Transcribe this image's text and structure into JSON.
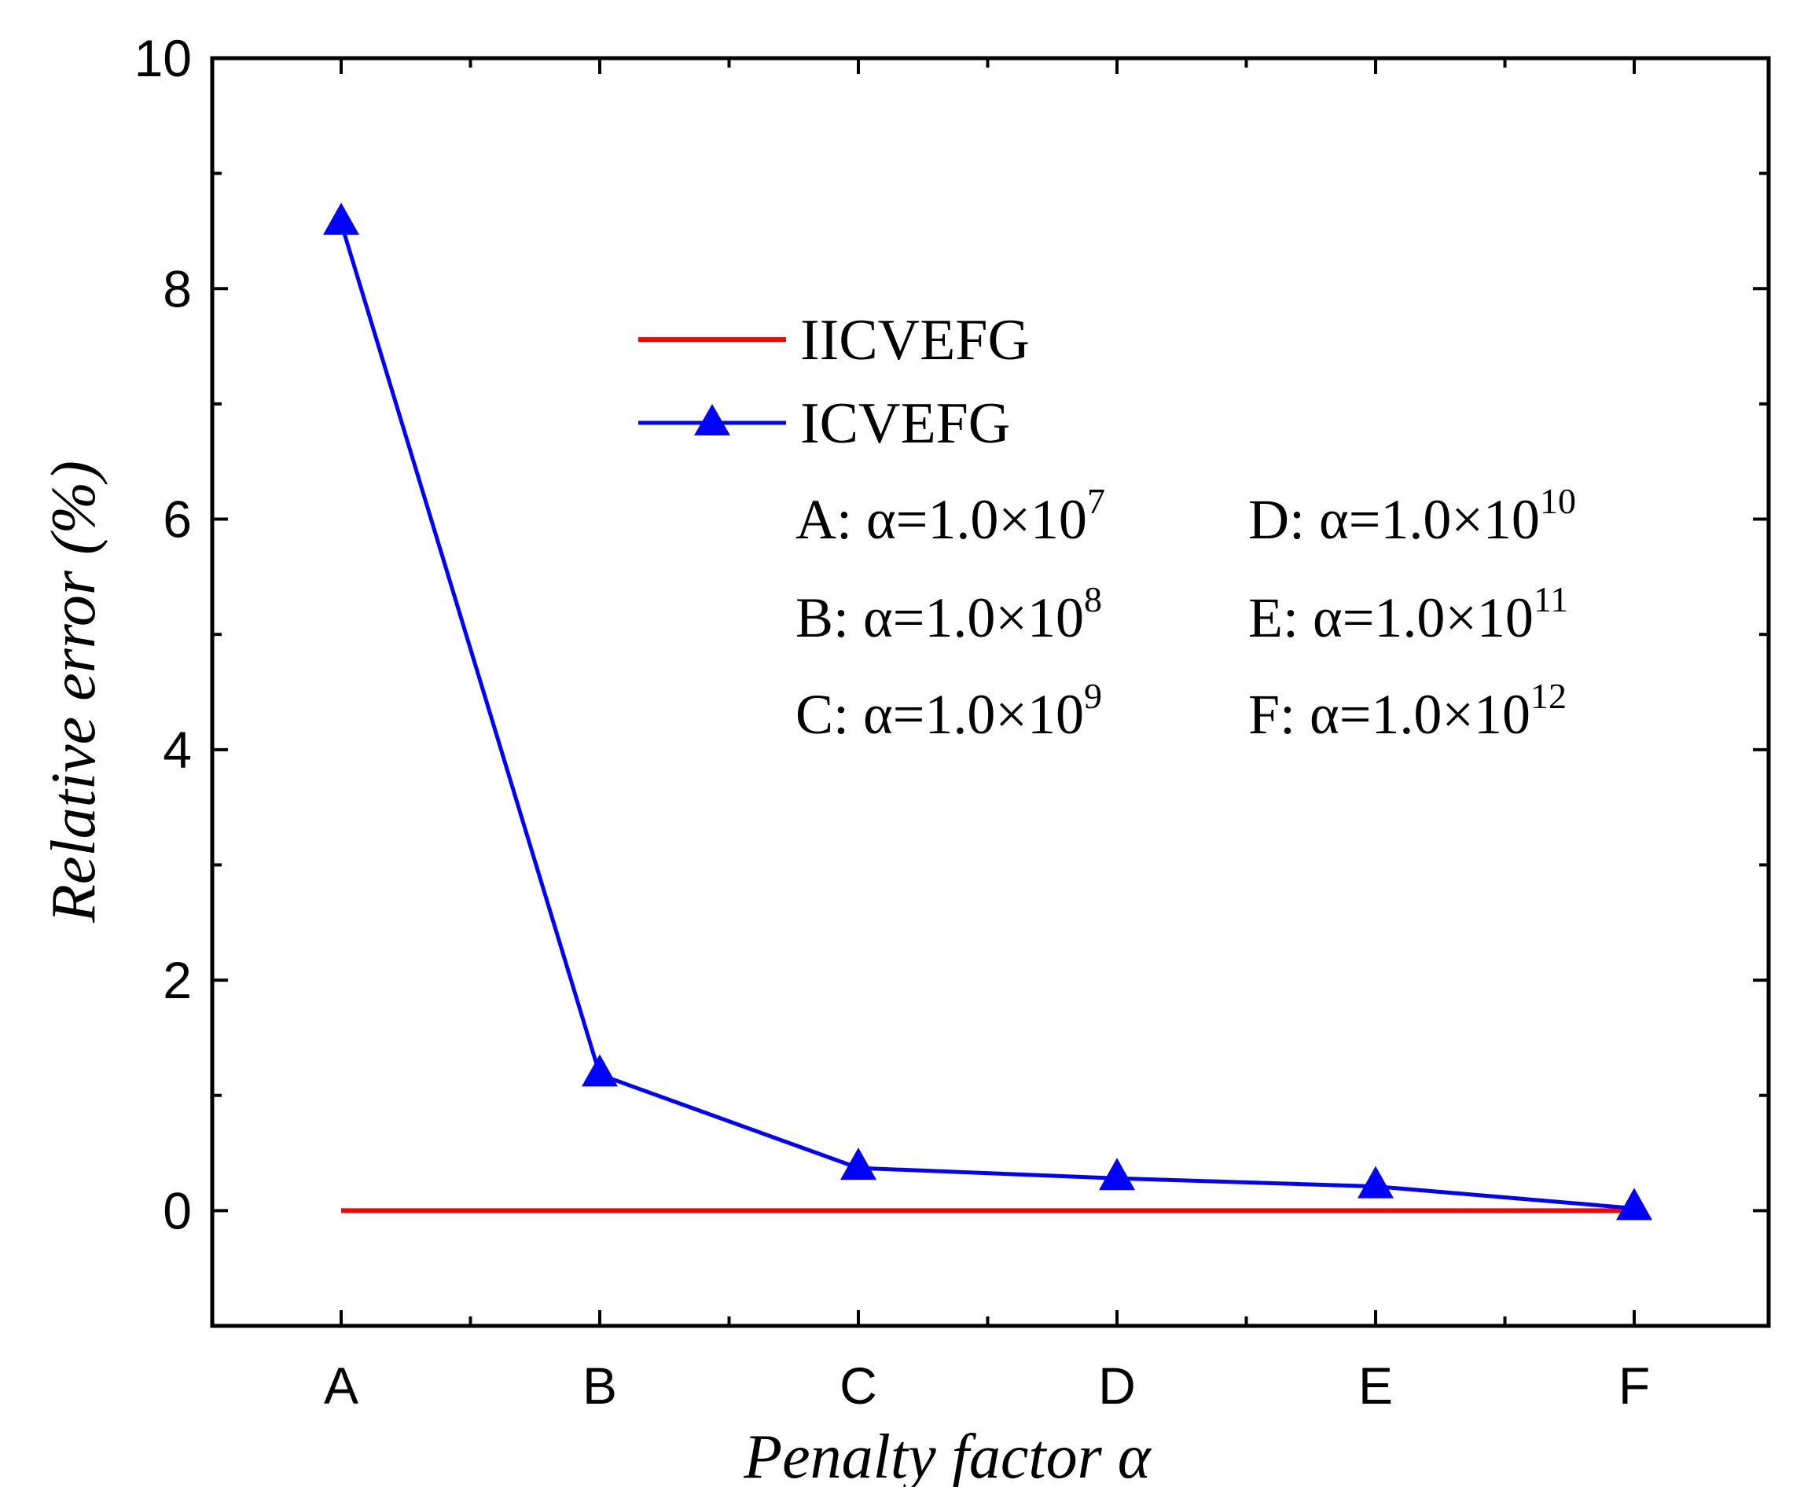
{
  "chart_data": {
    "type": "line",
    "title": "",
    "xlabel": "Penalty factor α",
    "ylabel": "Relative error (%)",
    "categories": [
      "A",
      "B",
      "C",
      "D",
      "E",
      "F"
    ],
    "ylim": [
      -1,
      10
    ],
    "yticks": [
      0,
      2,
      4,
      6,
      8,
      10
    ],
    "grid": false,
    "legend_position": "top-center",
    "series": [
      {
        "name": "IICVEFG",
        "color": "#ff0000",
        "marker": "none",
        "values": [
          0,
          0,
          0,
          0,
          0,
          0
        ]
      },
      {
        "name": "ICVEFG",
        "color": "#0000ff",
        "marker": "triangle",
        "values": [
          8.57,
          1.18,
          0.37,
          0.28,
          0.21,
          0.02
        ]
      }
    ],
    "annotations": [
      {
        "label": "A: α=1.0×10",
        "exp": "7"
      },
      {
        "label": "B: α=1.0×10",
        "exp": "8"
      },
      {
        "label": "C: α=1.0×10",
        "exp": "9"
      },
      {
        "label": "D: α=1.0×10",
        "exp": "10"
      },
      {
        "label": "E: α=1.0×10",
        "exp": "11"
      },
      {
        "label": "F: α=1.0×10",
        "exp": "12"
      }
    ]
  }
}
